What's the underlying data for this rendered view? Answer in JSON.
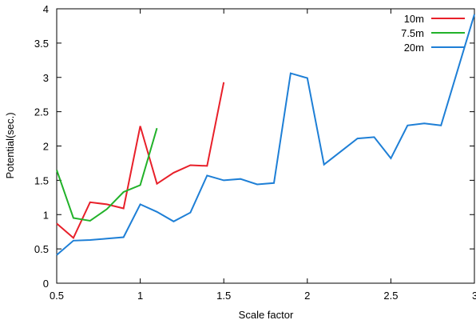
{
  "chart_data": {
    "type": "line",
    "title": "",
    "xlabel": "Scale factor",
    "ylabel": "Potential(sec.)",
    "xlim": [
      0.5,
      3
    ],
    "ylim": [
      0,
      4
    ],
    "xticks": [
      "0.5",
      "1",
      "1.5",
      "2",
      "2.5",
      "3"
    ],
    "yticks": [
      "0",
      "0.5",
      "1",
      "1.5",
      "2",
      "2.5",
      "3",
      "3.5",
      "4"
    ],
    "xtick_values": [
      0.5,
      1,
      1.5,
      2,
      2.5,
      3
    ],
    "ytick_values": [
      0,
      0.5,
      1,
      1.5,
      2,
      2.5,
      3,
      3.5,
      4
    ],
    "grid": false,
    "legend_position": "top-right",
    "series": [
      {
        "name": "10m",
        "color": "#e8202a",
        "x": [
          0.5,
          0.6,
          0.7,
          0.8,
          0.9,
          1.0,
          1.1,
          1.2,
          1.3,
          1.4,
          1.5
        ],
        "y": [
          0.87,
          0.66,
          1.18,
          1.15,
          1.09,
          2.29,
          1.45,
          1.61,
          1.72,
          1.71,
          2.93
        ]
      },
      {
        "name": "7.5m",
        "color": "#22b22a",
        "x": [
          0.5,
          0.6,
          0.7,
          0.8,
          0.9,
          1.0,
          1.1
        ],
        "y": [
          1.65,
          0.95,
          0.91,
          1.08,
          1.33,
          1.43,
          2.26
        ]
      },
      {
        "name": "20m",
        "color": "#1e7fd6",
        "x": [
          0.5,
          0.6,
          0.7,
          0.8,
          0.9,
          1.0,
          1.1,
          1.2,
          1.3,
          1.4,
          1.5,
          1.6,
          1.7,
          1.8,
          1.9,
          2.0,
          2.1,
          2.2,
          2.3,
          2.4,
          2.5,
          2.6,
          2.7,
          2.8,
          3.0
        ],
        "y": [
          0.41,
          0.62,
          0.63,
          0.65,
          0.67,
          1.15,
          1.04,
          0.9,
          1.03,
          1.57,
          1.5,
          1.52,
          1.44,
          1.46,
          3.06,
          2.99,
          1.73,
          1.92,
          2.11,
          2.13,
          1.82,
          2.3,
          2.33,
          2.3,
          3.92
        ]
      }
    ]
  }
}
